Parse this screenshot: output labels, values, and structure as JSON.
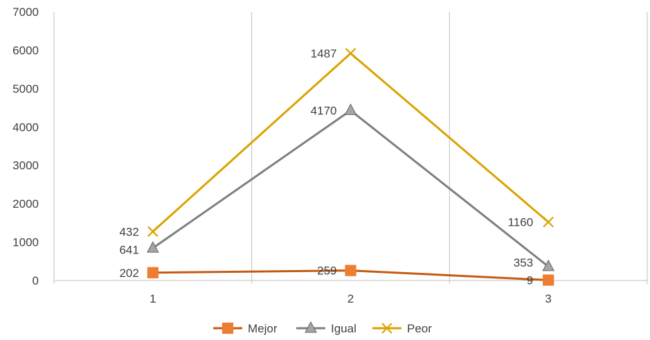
{
  "chart_data": {
    "type": "line",
    "title": "",
    "xlabel": "",
    "ylabel": "",
    "categories": [
      "1",
      "2",
      "3"
    ],
    "ylim": [
      0,
      7000
    ],
    "yticks": [
      0,
      1000,
      2000,
      3000,
      4000,
      5000,
      6000,
      7000
    ],
    "grid": "vertical-category-separators",
    "legend_position": "bottom",
    "series": [
      {
        "name": "Mejor",
        "color": "#C55A11",
        "marker": "square",
        "values": [
          202,
          259,
          9
        ],
        "data_labels": [
          "202",
          "259",
          "9"
        ]
      },
      {
        "name": "Igual",
        "color": "#7F7F7F",
        "marker": "triangle",
        "values": [
          843,
          4429,
          362
        ],
        "data_labels": [
          "641",
          "4170",
          "353"
        ]
      },
      {
        "name": "Peor",
        "color": "#D9A400",
        "marker": "x",
        "values": [
          1275,
          5916,
          1522
        ],
        "data_labels": [
          "432",
          "1487",
          "1160"
        ]
      }
    ]
  }
}
